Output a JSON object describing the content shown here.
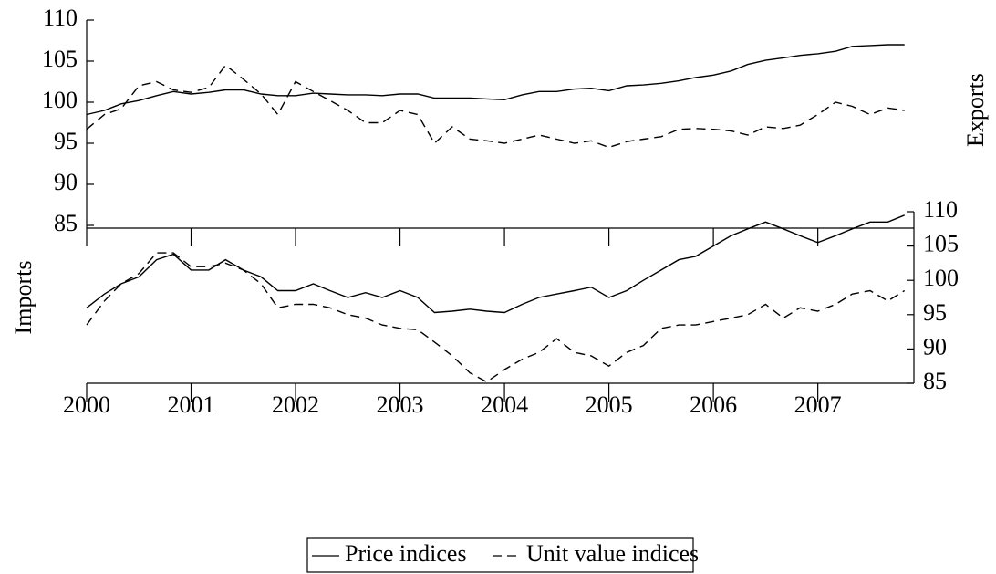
{
  "chart_data": [
    {
      "type": "line",
      "y_label": "Exports",
      "y_label_side": "right",
      "yaxis_side": "left",
      "xtick_labels": false,
      "x": [
        2000,
        2000.17,
        2000.33,
        2000.5,
        2000.67,
        2000.83,
        2001,
        2001.17,
        2001.33,
        2001.5,
        2001.67,
        2001.83,
        2002,
        2002.17,
        2002.33,
        2002.5,
        2002.67,
        2002.83,
        2003,
        2003.17,
        2003.33,
        2003.5,
        2003.67,
        2003.83,
        2004,
        2004.17,
        2004.33,
        2004.5,
        2004.67,
        2004.83,
        2005,
        2005.17,
        2005.33,
        2005.5,
        2005.67,
        2005.83,
        2006,
        2006.17,
        2006.33,
        2006.5,
        2006.67,
        2006.83,
        2007,
        2007.17,
        2007.33,
        2007.5,
        2007.67,
        2007.83
      ],
      "series": [
        {
          "name": "Price indices",
          "color": "#000000",
          "dash": "none",
          "values": [
            98.5,
            99,
            99.8,
            100.2,
            100.8,
            101.3,
            101,
            101.2,
            101.5,
            101.5,
            101.0,
            100.8,
            100.8,
            101.1,
            101.0,
            100.9,
            100.9,
            100.8,
            101.0,
            101.0,
            100.5,
            100.5,
            100.5,
            100.4,
            100.3,
            100.9,
            101.3,
            101.3,
            101.6,
            101.7,
            101.4,
            102.0,
            102.1,
            102.3,
            102.6,
            103.0,
            103.3,
            103.8,
            104.6,
            105.1,
            105.4,
            105.7,
            105.9,
            106.2,
            106.8,
            106.9,
            107.0,
            107.0
          ]
        },
        {
          "name": "Unit value indices",
          "color": "#000000",
          "dash": "10 6",
          "values": [
            96.7,
            98.5,
            99.2,
            102.0,
            102.5,
            101.5,
            101.2,
            101.8,
            104.5,
            102.8,
            101.0,
            98.5,
            102.5,
            101.3,
            100.2,
            99.0,
            97.5,
            97.5,
            99.0,
            98.5,
            95.0,
            97.0,
            95.5,
            95.3,
            95.0,
            95.5,
            96.0,
            95.5,
            95.0,
            95.3,
            94.5,
            95.2,
            95.5,
            95.8,
            96.7,
            96.8,
            96.7,
            96.5,
            96.0,
            97.0,
            96.8,
            97.2,
            98.5,
            100.0,
            99.5,
            98.5,
            99.3,
            99.0
          ]
        }
      ],
      "xlim": [
        2000,
        2007.92
      ],
      "xticks": [
        2000,
        2001,
        2002,
        2003,
        2004,
        2005,
        2006,
        2007
      ],
      "ylim": [
        85,
        110
      ],
      "yticks": [
        85,
        90,
        95,
        100,
        105,
        110
      ]
    },
    {
      "type": "line",
      "y_label": "Imports",
      "y_label_side": "left",
      "yaxis_side": "right",
      "xtick_labels": true,
      "x": [
        2000,
        2000.17,
        2000.33,
        2000.5,
        2000.67,
        2000.83,
        2001,
        2001.17,
        2001.33,
        2001.5,
        2001.67,
        2001.83,
        2002,
        2002.17,
        2002.33,
        2002.5,
        2002.67,
        2002.83,
        2003,
        2003.17,
        2003.33,
        2003.5,
        2003.67,
        2003.83,
        2004,
        2004.17,
        2004.33,
        2004.5,
        2004.67,
        2004.83,
        2005,
        2005.17,
        2005.33,
        2005.5,
        2005.67,
        2005.83,
        2006,
        2006.17,
        2006.33,
        2006.5,
        2006.67,
        2006.83,
        2007,
        2007.17,
        2007.33,
        2007.5,
        2007.67,
        2007.83
      ],
      "series": [
        {
          "color": "#000000",
          "dash": "none",
          "values": [
            96,
            98,
            99.5,
            100.5,
            103,
            103.8,
            101.5,
            101.5,
            103,
            101.5,
            100.5,
            98.5,
            98.5,
            99.5,
            98.5,
            97.5,
            98.2,
            97.5,
            98.5,
            97.5,
            95.3,
            95.5,
            95.8,
            95.5,
            95.3,
            96.5,
            97.5,
            98.0,
            98.5,
            99.0,
            97.5,
            98.5,
            100,
            101.5,
            103,
            103.5,
            105,
            106.5,
            107.5,
            108.5,
            107.5,
            106.5,
            105.5,
            106.5,
            107.5,
            108.5,
            108.5,
            109.5
          ]
        },
        {
          "color": "#000000",
          "dash": "10 6",
          "values": [
            93.5,
            97.0,
            99.5,
            101.0,
            104.0,
            104.0,
            102.0,
            102.0,
            102.5,
            101.5,
            99.5,
            96.0,
            96.5,
            96.5,
            96.0,
            95.0,
            94.5,
            93.5,
            93.0,
            92.8,
            91.0,
            89.0,
            86.5,
            85.2,
            87.0,
            88.5,
            89.5,
            91.5,
            89.5,
            89.0,
            87.5,
            89.5,
            90.5,
            93.0,
            93.5,
            93.5,
            94.0,
            94.5,
            95.0,
            96.5,
            94.5,
            96.0,
            95.5,
            96.5,
            98.0,
            98.5,
            97.0,
            98.5
          ]
        }
      ],
      "xlim": [
        2000,
        2007.92
      ],
      "xticks": [
        2000,
        2001,
        2002,
        2003,
        2004,
        2005,
        2006,
        2007
      ],
      "ylim": [
        85,
        110
      ],
      "yticks": [
        85,
        90,
        95,
        100,
        105,
        110
      ]
    }
  ]
}
